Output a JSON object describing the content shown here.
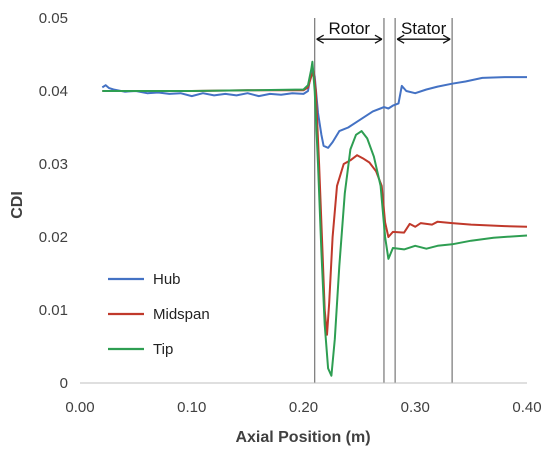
{
  "chart_data": {
    "type": "line",
    "xlabel": "Axial Position (m)",
    "ylabel": "CDI",
    "xlim": [
      0,
      0.4
    ],
    "ylim": [
      0,
      0.05
    ],
    "xticks": [
      "0.00",
      "0.10",
      "0.20",
      "0.30",
      "0.40"
    ],
    "yticks": [
      "0",
      "0.01",
      "0.02",
      "0.03",
      "0.04",
      "0.05"
    ],
    "grid": false,
    "legend_position": "bottom-left",
    "vlines": [
      0.21,
      0.272,
      0.282,
      0.333
    ],
    "regions": [
      {
        "label": "Rotor",
        "from": 0.21,
        "to": 0.272
      },
      {
        "label": "Stator",
        "from": 0.282,
        "to": 0.333
      }
    ],
    "series": [
      {
        "name": "Hub",
        "color": "#4472C4",
        "points": [
          [
            0.02,
            0.0405
          ],
          [
            0.023,
            0.0408
          ],
          [
            0.026,
            0.0404
          ],
          [
            0.03,
            0.0402
          ],
          [
            0.04,
            0.0399
          ],
          [
            0.05,
            0.04
          ],
          [
            0.06,
            0.0397
          ],
          [
            0.07,
            0.0398
          ],
          [
            0.08,
            0.0396
          ],
          [
            0.09,
            0.0397
          ],
          [
            0.1,
            0.0393
          ],
          [
            0.11,
            0.0397
          ],
          [
            0.12,
            0.0394
          ],
          [
            0.13,
            0.0396
          ],
          [
            0.14,
            0.0394
          ],
          [
            0.15,
            0.0397
          ],
          [
            0.16,
            0.0393
          ],
          [
            0.17,
            0.0396
          ],
          [
            0.18,
            0.0395
          ],
          [
            0.19,
            0.0397
          ],
          [
            0.2,
            0.0396
          ],
          [
            0.204,
            0.04
          ],
          [
            0.206,
            0.0418
          ],
          [
            0.208,
            0.0432
          ],
          [
            0.21,
            0.042
          ],
          [
            0.213,
            0.037
          ],
          [
            0.216,
            0.034
          ],
          [
            0.218,
            0.0325
          ],
          [
            0.222,
            0.0322
          ],
          [
            0.226,
            0.033
          ],
          [
            0.232,
            0.0345
          ],
          [
            0.24,
            0.035
          ],
          [
            0.25,
            0.036
          ],
          [
            0.262,
            0.0372
          ],
          [
            0.272,
            0.0378
          ],
          [
            0.276,
            0.0376
          ],
          [
            0.28,
            0.038
          ],
          [
            0.285,
            0.0383
          ],
          [
            0.288,
            0.0407
          ],
          [
            0.292,
            0.04
          ],
          [
            0.3,
            0.0397
          ],
          [
            0.31,
            0.0402
          ],
          [
            0.32,
            0.0406
          ],
          [
            0.333,
            0.041
          ],
          [
            0.345,
            0.0413
          ],
          [
            0.36,
            0.0418
          ],
          [
            0.38,
            0.0419
          ],
          [
            0.4,
            0.0419
          ]
        ]
      },
      {
        "name": "Midspan",
        "color": "#C0392B",
        "points": [
          [
            0.02,
            0.04
          ],
          [
            0.05,
            0.04
          ],
          [
            0.1,
            0.04
          ],
          [
            0.15,
            0.0401
          ],
          [
            0.2,
            0.0401
          ],
          [
            0.204,
            0.0405
          ],
          [
            0.207,
            0.042
          ],
          [
            0.209,
            0.0427
          ],
          [
            0.211,
            0.04
          ],
          [
            0.214,
            0.03
          ],
          [
            0.217,
            0.018
          ],
          [
            0.219,
            0.01
          ],
          [
            0.221,
            0.0066
          ],
          [
            0.223,
            0.011
          ],
          [
            0.226,
            0.02
          ],
          [
            0.23,
            0.027
          ],
          [
            0.236,
            0.03
          ],
          [
            0.242,
            0.0305
          ],
          [
            0.248,
            0.0312
          ],
          [
            0.253,
            0.0308
          ],
          [
            0.259,
            0.0302
          ],
          [
            0.265,
            0.029
          ],
          [
            0.27,
            0.027
          ],
          [
            0.273,
            0.022
          ],
          [
            0.276,
            0.02
          ],
          [
            0.28,
            0.0207
          ],
          [
            0.29,
            0.0206
          ],
          [
            0.295,
            0.0218
          ],
          [
            0.3,
            0.0214
          ],
          [
            0.305,
            0.0219
          ],
          [
            0.315,
            0.0217
          ],
          [
            0.32,
            0.0221
          ],
          [
            0.333,
            0.0219
          ],
          [
            0.35,
            0.0217
          ],
          [
            0.38,
            0.0215
          ],
          [
            0.4,
            0.0214
          ]
        ]
      },
      {
        "name": "Tip",
        "color": "#2E9E52",
        "points": [
          [
            0.02,
            0.04
          ],
          [
            0.05,
            0.04
          ],
          [
            0.1,
            0.04
          ],
          [
            0.15,
            0.0401
          ],
          [
            0.2,
            0.0402
          ],
          [
            0.204,
            0.0408
          ],
          [
            0.207,
            0.043
          ],
          [
            0.208,
            0.044
          ],
          [
            0.21,
            0.04
          ],
          [
            0.213,
            0.03
          ],
          [
            0.216,
            0.018
          ],
          [
            0.219,
            0.008
          ],
          [
            0.222,
            0.002
          ],
          [
            0.225,
            0.001
          ],
          [
            0.228,
            0.006
          ],
          [
            0.232,
            0.016
          ],
          [
            0.237,
            0.026
          ],
          [
            0.242,
            0.032
          ],
          [
            0.247,
            0.034
          ],
          [
            0.252,
            0.0345
          ],
          [
            0.257,
            0.0335
          ],
          [
            0.263,
            0.031
          ],
          [
            0.269,
            0.027
          ],
          [
            0.273,
            0.02
          ],
          [
            0.276,
            0.017
          ],
          [
            0.28,
            0.0185
          ],
          [
            0.29,
            0.0183
          ],
          [
            0.3,
            0.0188
          ],
          [
            0.31,
            0.0184
          ],
          [
            0.32,
            0.0188
          ],
          [
            0.333,
            0.019
          ],
          [
            0.35,
            0.0195
          ],
          [
            0.37,
            0.0199
          ],
          [
            0.4,
            0.0202
          ]
        ]
      }
    ]
  }
}
